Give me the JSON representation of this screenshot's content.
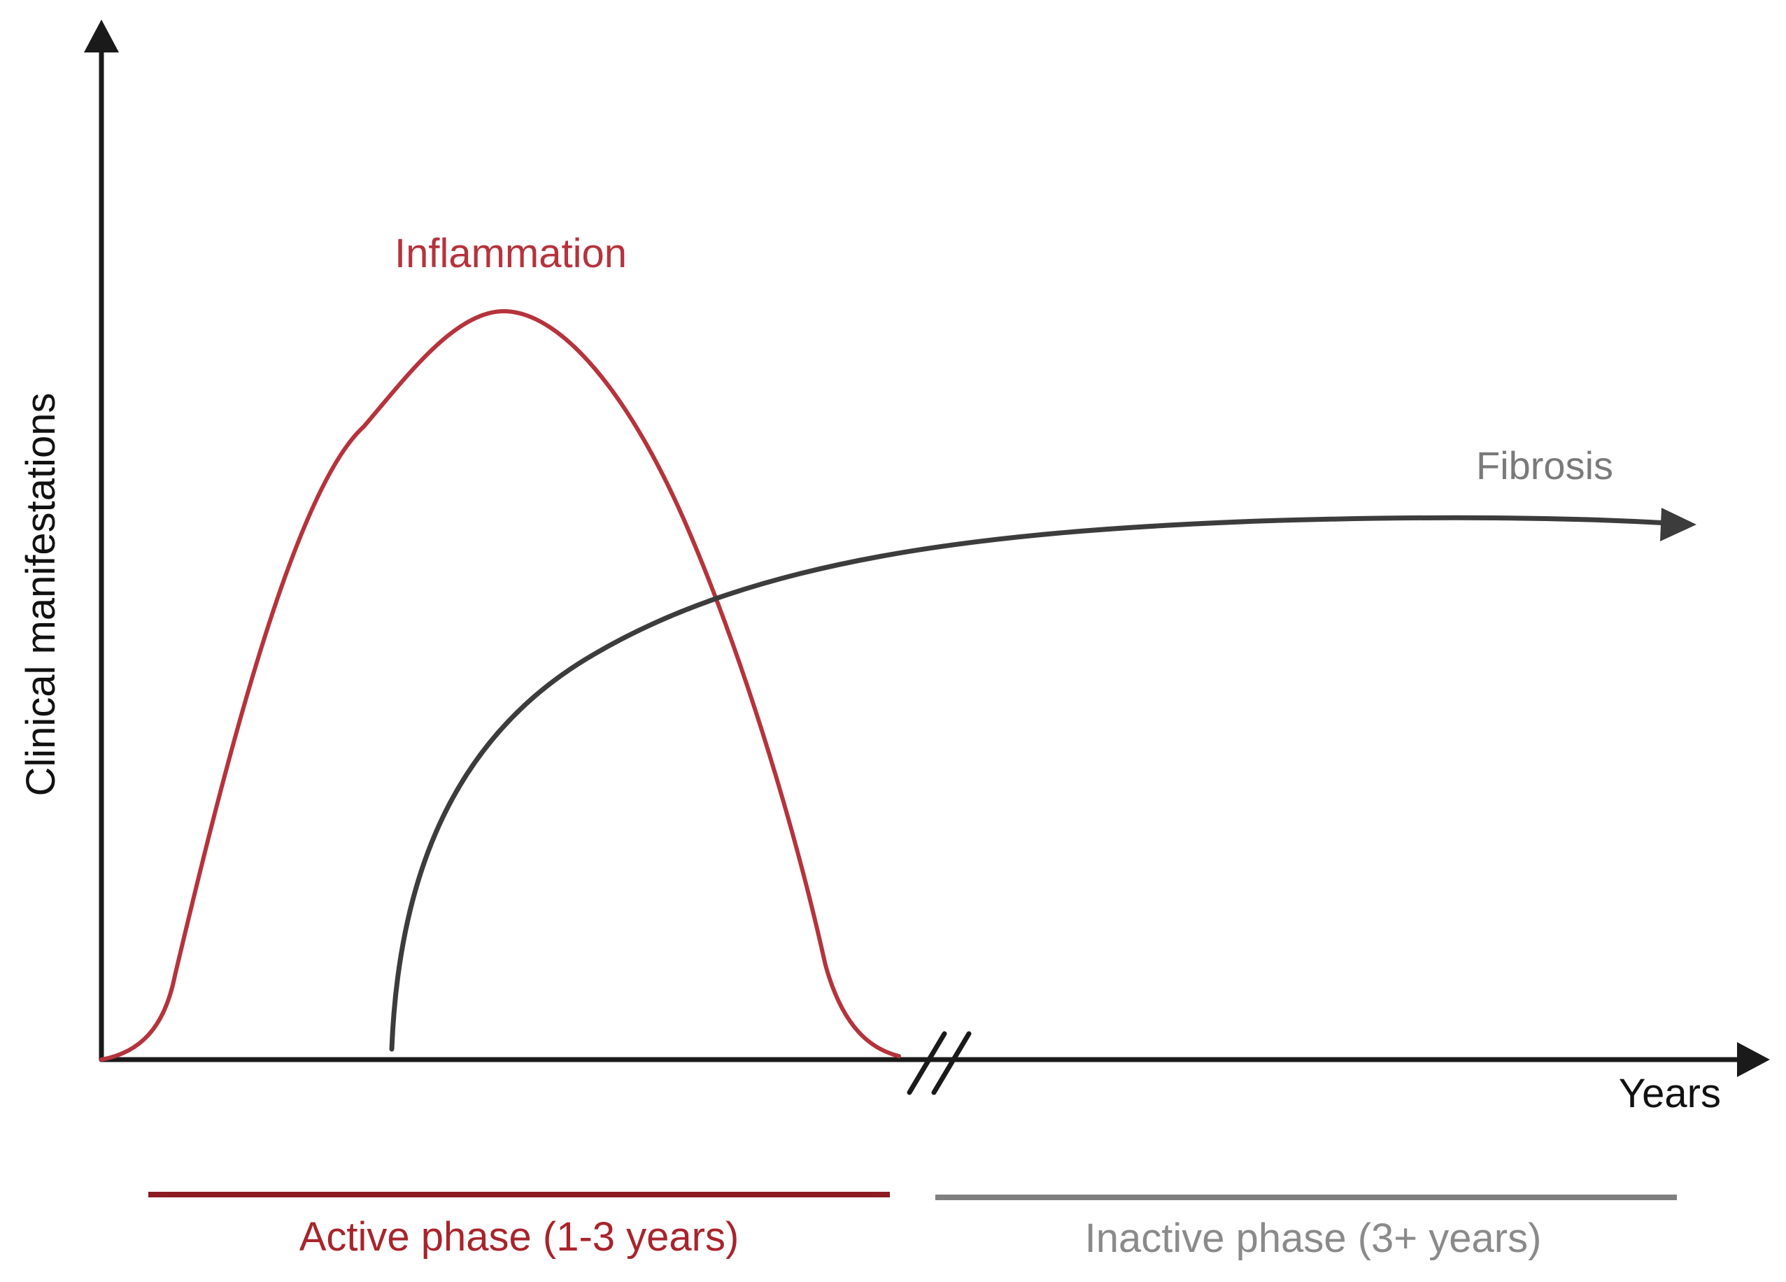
{
  "axes": {
    "y_label": "Clinical manifestations",
    "x_label": "Years"
  },
  "curves": {
    "inflammation": {
      "label": "Inflammation",
      "color": "#b5333c"
    },
    "fibrosis": {
      "label": "Fibrosis",
      "color": "#3c3c3c",
      "label_color": "#7a7a7a"
    }
  },
  "phases": {
    "active": {
      "label": "Active phase (1-3 years)",
      "color": "#8b1a22",
      "text_color": "#a8242c"
    },
    "inactive": {
      "label": "Inactive phase (3+ years)",
      "color": "#7f7f7f",
      "text_color": "#8a8a8a"
    }
  },
  "colors": {
    "axis": "#1a1a1a"
  }
}
